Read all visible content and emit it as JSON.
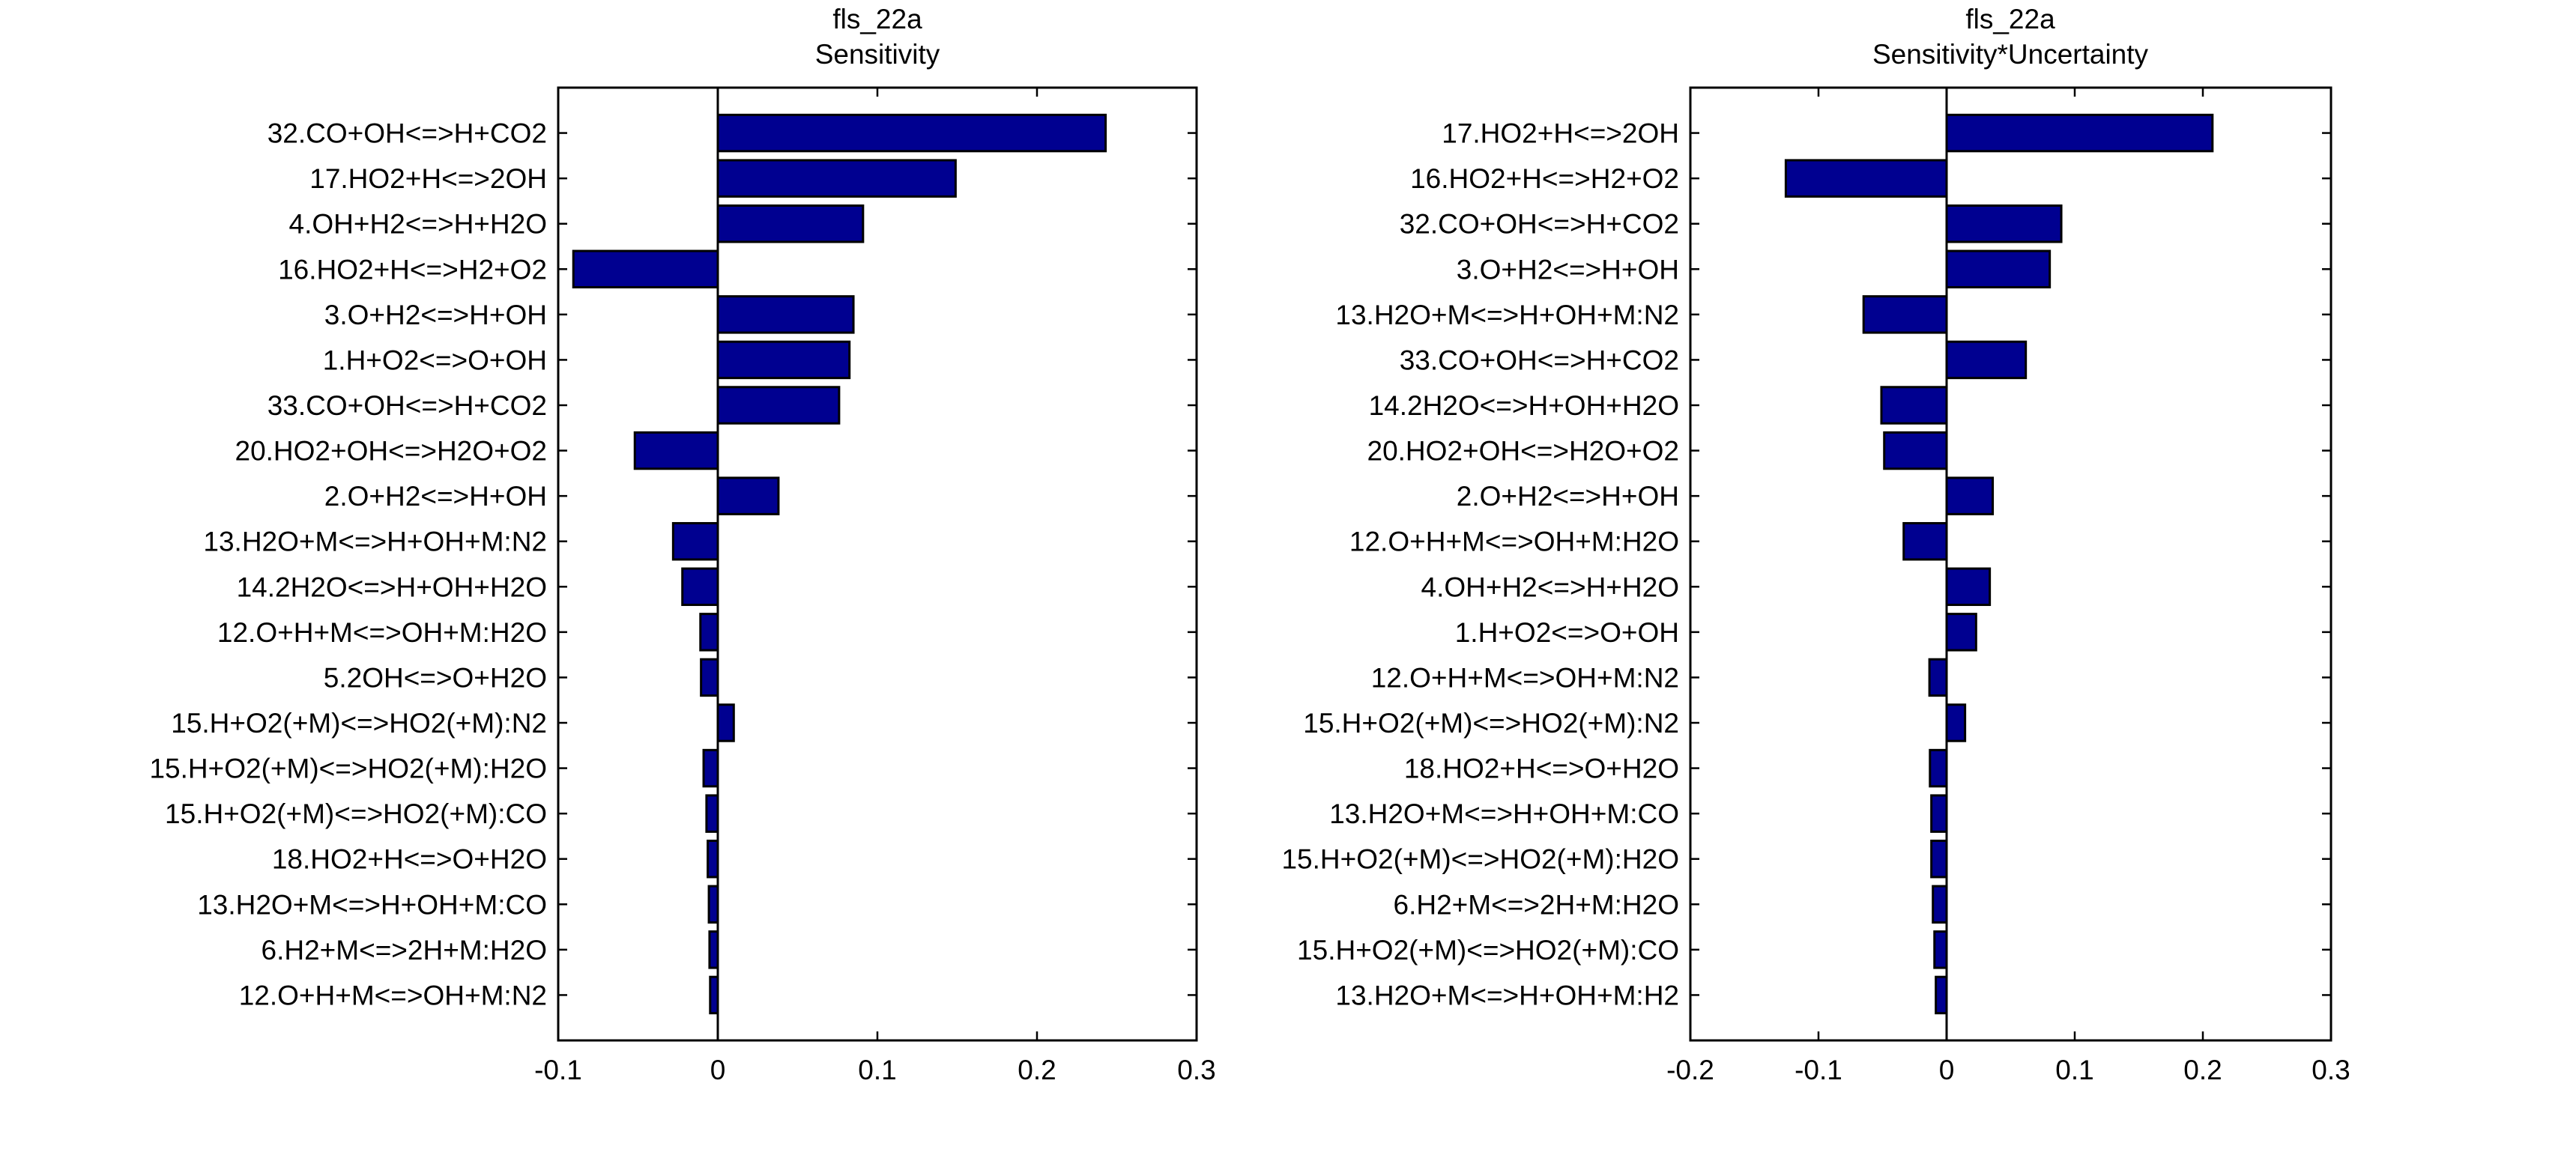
{
  "chart_data": [
    {
      "type": "bar",
      "orientation": "horizontal",
      "title": "fls_22a",
      "subtitle": "Sensitivity",
      "xlabel": "",
      "ylabel": "",
      "xlim": [
        -0.1,
        0.3
      ],
      "xticks": [
        -0.1,
        0,
        0.1,
        0.2,
        0.3
      ],
      "xtick_labels": [
        "-0.1",
        "0",
        "0.1",
        "0.2",
        "0.3"
      ],
      "grid": false,
      "bar_color": "#000090",
      "categories": [
        "32.CO+OH<=>H+CO2",
        "17.HO2+H<=>2OH",
        "4.OH+H2<=>H+H2O",
        "16.HO2+H<=>H2+O2",
        "3.O+H2<=>H+OH",
        "1.H+O2<=>O+OH",
        "33.CO+OH<=>H+CO2",
        "20.HO2+OH<=>H2O+O2",
        "2.O+H2<=>H+OH",
        "13.H2O+M<=>H+OH+M:N2",
        "14.2H2O<=>H+OH+H2O",
        "12.O+H+M<=>OH+M:H2O",
        "5.2OH<=>O+H2O",
        "15.H+O2(+M)<=>HO2(+M):N2",
        "15.H+O2(+M)<=>HO2(+M):H2O",
        "15.H+O2(+M)<=>HO2(+M):CO",
        "18.HO2+H<=>O+H2O",
        "13.H2O+M<=>H+OH+M:CO",
        "6.H2+M<=>2H+M:H2O",
        "12.O+H+M<=>OH+M:N2"
      ],
      "values": [
        0.243,
        0.149,
        0.091,
        -0.0905,
        0.085,
        0.0825,
        0.076,
        -0.052,
        0.038,
        -0.028,
        -0.0222,
        -0.0109,
        -0.0105,
        0.01,
        -0.0089,
        -0.0071,
        -0.0063,
        -0.0056,
        -0.0052,
        -0.0048
      ]
    },
    {
      "type": "bar",
      "orientation": "horizontal",
      "title": "fls_22a",
      "subtitle": "Sensitivity*Uncertainty",
      "xlabel": "",
      "ylabel": "",
      "xlim": [
        -0.2,
        0.3
      ],
      "xticks": [
        -0.2,
        -0.1,
        0,
        0.1,
        0.2,
        0.3
      ],
      "xtick_labels": [
        "-0.2",
        "-0.1",
        "0",
        "0.1",
        "0.2",
        "0.3"
      ],
      "grid": false,
      "bar_color": "#000090",
      "categories": [
        "17.HO2+H<=>2OH",
        "16.HO2+H<=>H2+O2",
        "32.CO+OH<=>H+CO2",
        "3.O+H2<=>H+OH",
        "13.H2O+M<=>H+OH+M:N2",
        "33.CO+OH<=>H+CO2",
        "14.2H2O<=>H+OH+H2O",
        "20.HO2+OH<=>H2O+O2",
        "2.O+H2<=>H+OH",
        "12.O+H+M<=>OH+M:H2O",
        "4.OH+H2<=>H+H2O",
        "1.H+O2<=>O+OH",
        "12.O+H+M<=>OH+M:N2",
        "15.H+O2(+M)<=>HO2(+M):N2",
        "18.HO2+H<=>O+H2O",
        "13.H2O+M<=>H+OH+M:CO",
        "15.H+O2(+M)<=>HO2(+M):H2O",
        "6.H2+M<=>2H+M:H2O",
        "15.H+O2(+M)<=>HO2(+M):CO",
        "13.H2O+M<=>H+OH+M:H2"
      ],
      "values": [
        0.2075,
        -0.1255,
        0.0895,
        0.0805,
        -0.0648,
        0.0618,
        -0.0509,
        -0.0487,
        0.036,
        -0.0335,
        0.0337,
        0.023,
        -0.0134,
        0.0144,
        -0.013,
        -0.0119,
        -0.0119,
        -0.0107,
        -0.0095,
        -0.0084
      ]
    }
  ]
}
